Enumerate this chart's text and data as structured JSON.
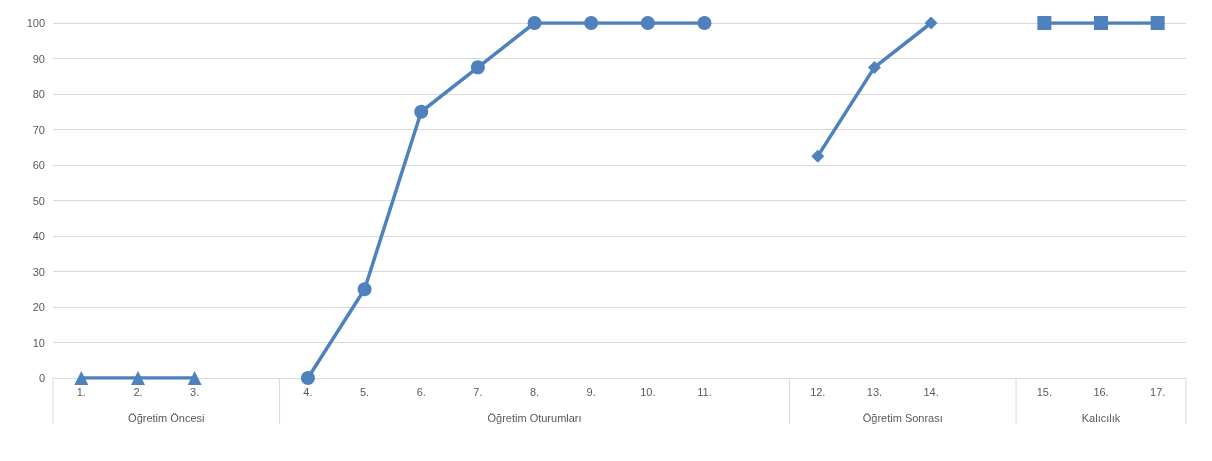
{
  "chart_data": {
    "type": "line",
    "categories": [
      "1.",
      "2.",
      "3.",
      null,
      "4.",
      "5.",
      "6.",
      "7.",
      "8.",
      "9.",
      "10.",
      "11.",
      null,
      "12.",
      "13.",
      "14.",
      null,
      "15.",
      "16.",
      "17."
    ],
    "series": [
      {
        "color": "#4f81bd",
        "marker": "triangle",
        "values": [
          0,
          0,
          0,
          null,
          null,
          null,
          null,
          null,
          null,
          null,
          null,
          null,
          null,
          null,
          null,
          null,
          null,
          null,
          null,
          null
        ]
      },
      {
        "color": "#4f81bd",
        "marker": "circle",
        "values": [
          null,
          null,
          null,
          null,
          0,
          25,
          75,
          87.5,
          100,
          100,
          100,
          100,
          null,
          null,
          null,
          null,
          null,
          null,
          null,
          null
        ]
      },
      {
        "color": "#4f81bd",
        "marker": "diamond",
        "values": [
          null,
          null,
          null,
          null,
          null,
          null,
          null,
          null,
          null,
          null,
          null,
          null,
          null,
          62.5,
          87.5,
          100,
          null,
          null,
          null,
          null
        ]
      },
      {
        "color": "#4f81bd",
        "marker": "square",
        "values": [
          null,
          null,
          null,
          null,
          null,
          null,
          null,
          null,
          null,
          null,
          null,
          null,
          null,
          null,
          null,
          null,
          null,
          100,
          100,
          100
        ]
      }
    ],
    "ylim": [
      0,
      100
    ],
    "yticks": [
      0,
      10,
      20,
      30,
      40,
      50,
      60,
      70,
      80,
      90,
      100
    ],
    "grid": "y",
    "annotations": [
      "Öğretim Öncesi",
      "Öğretim Oturumları",
      "Öğretim Sonrası",
      "Kalıcılık"
    ]
  }
}
